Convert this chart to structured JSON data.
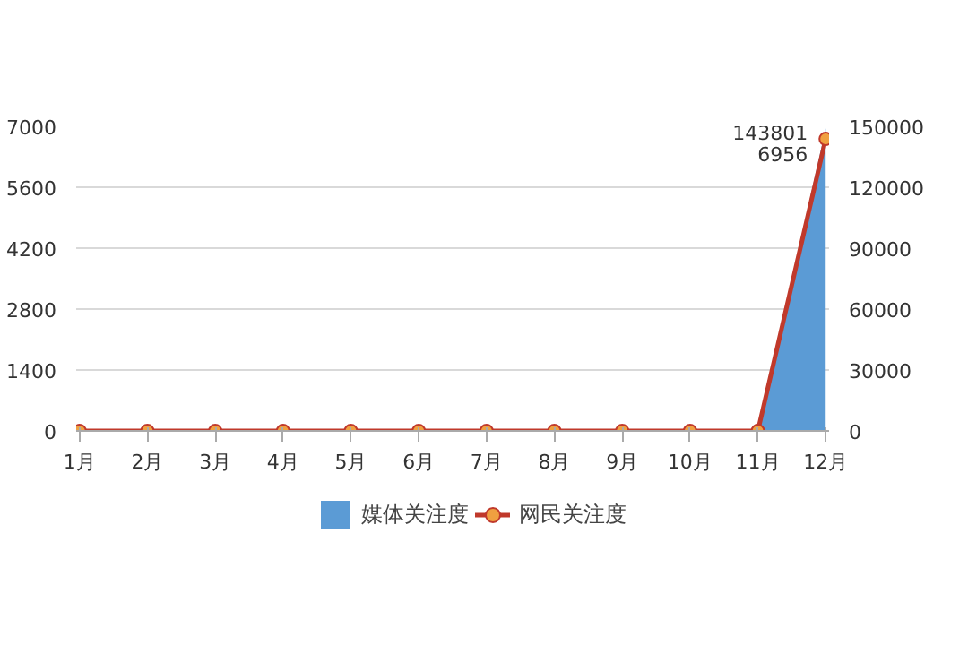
{
  "chart_data": {
    "type": "area",
    "categories": [
      "1月",
      "2月",
      "3月",
      "4月",
      "5月",
      "6月",
      "7月",
      "8月",
      "9月",
      "10月",
      "11月",
      "12月"
    ],
    "series": [
      {
        "name": "媒体关注度",
        "color": "#5b9bd5",
        "values": [
          0,
          0,
          0,
          0,
          0,
          0,
          0,
          0,
          0,
          0,
          0,
          6956
        ],
        "value_labels": [
          null,
          null,
          null,
          null,
          null,
          null,
          null,
          null,
          null,
          null,
          null,
          "6956"
        ]
      },
      {
        "name": "网民关注度",
        "type": "line",
        "axis": "y2",
        "color": "#c0392b",
        "marker": "circle",
        "values": [
          0,
          0,
          0,
          0,
          0,
          0,
          0,
          0,
          0,
          0,
          0,
          143801
        ],
        "value_labels": [
          null,
          null,
          null,
          null,
          null,
          null,
          null,
          null,
          null,
          null,
          null,
          "143801"
        ]
      }
    ],
    "ylim": [
      0,
      7000
    ],
    "yticks": [
      0,
      1400,
      2800,
      4200,
      5600,
      7000
    ],
    "y2lim": [
      0,
      150000
    ],
    "y2ticks": [
      0,
      30000,
      60000,
      90000,
      120000,
      150000
    ],
    "grid": "y",
    "legend": "bottom"
  }
}
